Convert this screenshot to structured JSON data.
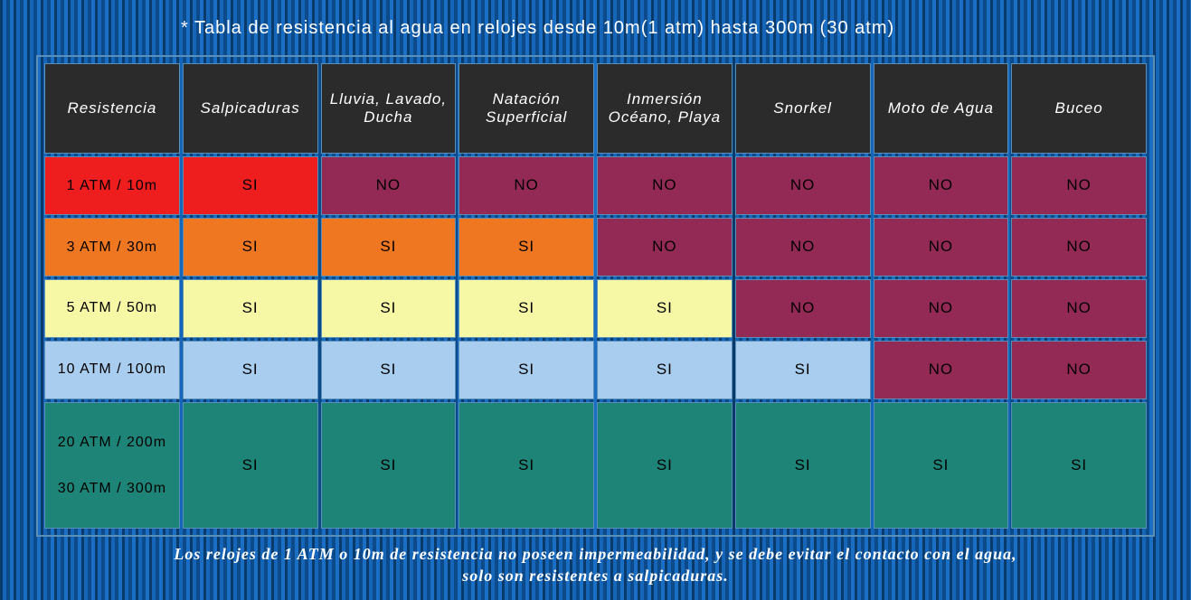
{
  "title": "* Tabla de resistencia al agua en relojes desde 10m(1 atm) hasta 300m (30 atm)",
  "footer": "Los relojes de 1 ATM o 10m de resistencia no poseen impermeabilidad, y se debe evitar el contacto con el agua,\nsolo son resistentes a salpicaduras.",
  "colors": {
    "header_bg": "#2b2b2b",
    "red": "#ef1e1e",
    "orange": "#f07721",
    "yellow": "#f7f8a6",
    "lightblue": "#a9cdee",
    "teal": "#1f8478",
    "maroon": "#922a55",
    "border": "#5a8fb8",
    "text_light": "#ffffff",
    "text_dark": "#000000"
  },
  "columns": [
    "Resistencia",
    "Salpicaduras",
    "Lluvia, Lavado, Ducha",
    "Natación Superficial",
    "Inmersión Océano, Playa",
    "Snorkel",
    "Moto de Agua",
    "Buceo"
  ],
  "rows": [
    {
      "label": "1 ATM / 10m",
      "tall": false,
      "cells": [
        {
          "v": "1 ATM / 10m",
          "c": "red"
        },
        {
          "v": "SI",
          "c": "red"
        },
        {
          "v": "NO",
          "c": "maroon"
        },
        {
          "v": "NO",
          "c": "maroon"
        },
        {
          "v": "NO",
          "c": "maroon"
        },
        {
          "v": "NO",
          "c": "maroon"
        },
        {
          "v": "NO",
          "c": "maroon"
        },
        {
          "v": "NO",
          "c": "maroon"
        }
      ]
    },
    {
      "label": "3 ATM / 30m",
      "tall": false,
      "cells": [
        {
          "v": "3 ATM / 30m",
          "c": "orange"
        },
        {
          "v": "SI",
          "c": "orange"
        },
        {
          "v": "SI",
          "c": "orange"
        },
        {
          "v": "SI",
          "c": "orange"
        },
        {
          "v": "NO",
          "c": "maroon"
        },
        {
          "v": "NO",
          "c": "maroon"
        },
        {
          "v": "NO",
          "c": "maroon"
        },
        {
          "v": "NO",
          "c": "maroon"
        }
      ]
    },
    {
      "label": "5 ATM / 50m",
      "tall": false,
      "cells": [
        {
          "v": "5 ATM / 50m",
          "c": "yellow"
        },
        {
          "v": "SI",
          "c": "yellow"
        },
        {
          "v": "SI",
          "c": "yellow"
        },
        {
          "v": "SI",
          "c": "yellow"
        },
        {
          "v": "SI",
          "c": "yellow"
        },
        {
          "v": "NO",
          "c": "maroon"
        },
        {
          "v": "NO",
          "c": "maroon"
        },
        {
          "v": "NO",
          "c": "maroon"
        }
      ]
    },
    {
      "label": "10 ATM / 100m",
      "tall": false,
      "cells": [
        {
          "v": "10 ATM / 100m",
          "c": "lightblue"
        },
        {
          "v": "SI",
          "c": "lightblue"
        },
        {
          "v": "SI",
          "c": "lightblue"
        },
        {
          "v": "SI",
          "c": "lightblue"
        },
        {
          "v": "SI",
          "c": "lightblue"
        },
        {
          "v": "SI",
          "c": "lightblue"
        },
        {
          "v": "NO",
          "c": "maroon"
        },
        {
          "v": "NO",
          "c": "maroon"
        }
      ]
    },
    {
      "label": "20 ATM / 200m\n\n30 ATM / 300m",
      "tall": true,
      "cells": [
        {
          "v": "20 ATM / 200m\n\n30 ATM / 300m",
          "c": "teal"
        },
        {
          "v": "SI",
          "c": "teal"
        },
        {
          "v": "SI",
          "c": "teal"
        },
        {
          "v": "SI",
          "c": "teal"
        },
        {
          "v": "SI",
          "c": "teal"
        },
        {
          "v": "SI",
          "c": "teal"
        },
        {
          "v": "SI",
          "c": "teal"
        },
        {
          "v": "SI",
          "c": "teal"
        }
      ]
    }
  ]
}
